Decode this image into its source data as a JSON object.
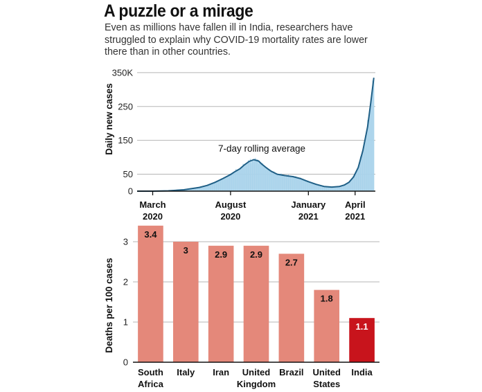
{
  "header": {
    "title": "A puzzle or a mirage",
    "subtitle": "Even as millions have fallen ill in India, researchers have struggled to explain why COVID-19 mortality rates are lower there than in other countries."
  },
  "colors": {
    "area_fill": "#a9d3eb",
    "line": "#1f5f86",
    "bar": "#e4887a",
    "bar_highlight": "#c8141c",
    "grid": "#b5b5b5"
  },
  "chart_data": [
    {
      "type": "area",
      "title": "",
      "ylabel": "Daily new cases",
      "annotation": "7-day rolling average",
      "y_ticks": [
        "350K",
        "250",
        "150",
        "50",
        "0"
      ],
      "y_tick_values": [
        350,
        250,
        150,
        50,
        0
      ],
      "ylim": [
        0,
        360
      ],
      "x_ticks": [
        {
          "line1": "March",
          "line2": "2020",
          "month": 0
        },
        {
          "line1": "August",
          "line2": "2020",
          "month": 5
        },
        {
          "line1": "January",
          "line2": "2021",
          "month": 10
        },
        {
          "line1": "April",
          "line2": "2021",
          "month": 13
        }
      ],
      "x_unit": "months since March 2020",
      "xlim": [
        -1,
        14.3
      ],
      "grid": true,
      "series": [
        {
          "name": "7-day rolling average",
          "x": [
            -1,
            0,
            1,
            2,
            3,
            3.5,
            4,
            4.5,
            5,
            5.3,
            5.6,
            5.9,
            6.2,
            6.5,
            6.8,
            7.0,
            7.3,
            7.6,
            8.0,
            8.5,
            9.0,
            9.5,
            10.0,
            10.5,
            11.0,
            11.5,
            12.0,
            12.3,
            12.6,
            12.9,
            13.2,
            13.5,
            13.8,
            14.0,
            14.2
          ],
          "values": [
            0,
            0,
            1,
            4,
            11,
            17,
            26,
            37,
            49,
            58,
            66,
            78,
            88,
            93,
            89,
            80,
            69,
            59,
            50,
            46,
            43,
            37,
            28,
            20,
            14,
            12,
            14,
            18,
            26,
            42,
            70,
            120,
            190,
            260,
            335
          ]
        }
      ]
    },
    {
      "type": "bar",
      "title": "",
      "ylabel": "Deaths per 100 cases",
      "categories": [
        "South Africa",
        "Italy",
        "Iran",
        "United Kingdom",
        "Brazil",
        "United States",
        "India"
      ],
      "category_lines": [
        [
          "South",
          "Africa"
        ],
        [
          "Italy"
        ],
        [
          "Iran"
        ],
        [
          "United",
          "Kingdom"
        ],
        [
          "Brazil"
        ],
        [
          "United",
          "States"
        ],
        [
          "India"
        ]
      ],
      "values": [
        3.4,
        3,
        2.9,
        2.9,
        2.7,
        1.8,
        1.1
      ],
      "value_labels": [
        "3.4",
        "3",
        "2.9",
        "2.9",
        "2.7",
        "1.8",
        "1.1"
      ],
      "highlight": "India",
      "y_ticks": [
        "3",
        "2",
        "1",
        "0"
      ],
      "y_tick_values": [
        3,
        2,
        1,
        0
      ],
      "ylim": [
        0,
        3.5
      ],
      "grid": true
    }
  ]
}
